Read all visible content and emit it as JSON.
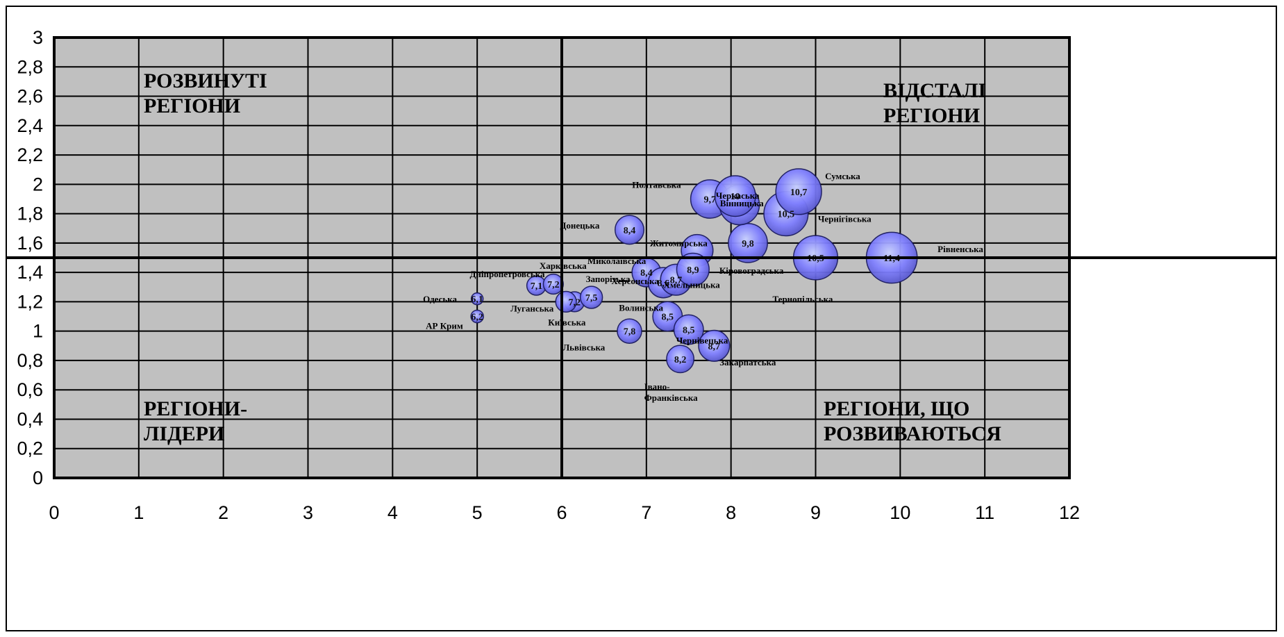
{
  "chart_data": {
    "type": "bubble",
    "title": "",
    "xlabel": "",
    "ylabel": "",
    "xlim": [
      0,
      12
    ],
    "ylim": [
      0,
      3
    ],
    "x_ticks": [
      "0",
      "1",
      "2",
      "3",
      "4",
      "5",
      "6",
      "7",
      "8",
      "9",
      "10",
      "11",
      "12"
    ],
    "y_ticks": [
      "0",
      "0,2",
      "0,4",
      "0,6",
      "0,8",
      "1",
      "1,2",
      "1,4",
      "1,6",
      "1,8",
      "2",
      "2,2",
      "2,4",
      "2,6",
      "2,8",
      "3"
    ],
    "grid": true,
    "divider": {
      "x": 6,
      "y": 1.5
    },
    "quadrants": {
      "top_left": [
        "РОЗВИНУТІ",
        "РЕГІОНИ"
      ],
      "top_right": [
        "ВІДСТАЛІ",
        "РЕГІОНИ"
      ],
      "bottom_left": [
        "РЕГІОНИ-",
        "ЛІДЕРИ"
      ],
      "bottom_right": [
        "РЕГІОНИ, ЩО",
        "РОЗВИВАЮТЬСЯ"
      ]
    },
    "colors": {
      "plot_bg": "#c0c0c0",
      "bubble_fill": "#8080ff",
      "bubble_stroke": "#1a1a60"
    },
    "points": [
      {
        "region": "Одеська",
        "x": 5.0,
        "y": 1.22,
        "value": "6,1",
        "size": 6.1
      },
      {
        "region": "АР Крим",
        "x": 5.0,
        "y": 1.1,
        "value": "6,2",
        "size": 6.2
      },
      {
        "region": "Дніпропетровська",
        "x": 5.7,
        "y": 1.31,
        "value": "7,1",
        "size": 7.1
      },
      {
        "region": "Харківська",
        "x": 5.9,
        "y": 1.32,
        "value": "7,2",
        "size": 7.2
      },
      {
        "region": "Луганська",
        "x": 6.05,
        "y": 1.2,
        "value": "",
        "size": 7.3
      },
      {
        "region": "Київська",
        "x": 6.15,
        "y": 1.2,
        "value": "7,2",
        "size": 7.2
      },
      {
        "region": "Запорізька",
        "x": 6.35,
        "y": 1.23,
        "value": "7,5",
        "size": 7.5
      },
      {
        "region": "Донецька",
        "x": 6.8,
        "y": 1.69,
        "value": "8,4",
        "size": 8.4
      },
      {
        "region": "Львівська",
        "x": 6.8,
        "y": 1.0,
        "value": "7,8",
        "size": 7.8
      },
      {
        "region": "Миколаївська",
        "x": 7.0,
        "y": 1.4,
        "value": "8,4",
        "size": 8.4
      },
      {
        "region": "Херсонська",
        "x": 7.2,
        "y": 1.33,
        "value": "8,6",
        "size": 8.6
      },
      {
        "region": "Волинська",
        "x": 7.25,
        "y": 1.1,
        "value": "8,5",
        "size": 8.5
      },
      {
        "region": "Хмельницька",
        "x": 7.35,
        "y": 1.35,
        "value": "8,7",
        "size": 8.7
      },
      {
        "region": "Кіровоградська",
        "x": 7.55,
        "y": 1.42,
        "value": "8,9",
        "size": 8.9
      },
      {
        "region": "Житомирська",
        "x": 7.6,
        "y": 1.55,
        "value": "",
        "size": 8.8
      },
      {
        "region": "Чернівецька",
        "x": 7.5,
        "y": 1.01,
        "value": "8,5",
        "size": 8.5
      },
      {
        "region": "Закарпатська",
        "x": 7.8,
        "y": 0.9,
        "value": "8,7",
        "size": 8.7
      },
      {
        "region": "Івано-Франківська",
        "x": 7.4,
        "y": 0.81,
        "value": "8,2",
        "size": 8.2
      },
      {
        "region": "Полтавська",
        "x": 7.75,
        "y": 1.9,
        "value": "9,7",
        "size": 9.7
      },
      {
        "region": "Черкаська",
        "x": 8.05,
        "y": 1.92,
        "value": "10",
        "size": 10.0
      },
      {
        "region": "Вінницька",
        "x": 8.1,
        "y": 1.86,
        "value": "",
        "size": 9.9
      },
      {
        "region": "",
        "x": 8.2,
        "y": 1.6,
        "value": "9,8",
        "size": 9.8
      },
      {
        "region": "Сумська",
        "x": 8.8,
        "y": 1.95,
        "value": "10,7",
        "size": 10.7
      },
      {
        "region": "Чернігівська",
        "x": 8.65,
        "y": 1.8,
        "value": "10,5",
        "size": 10.5
      },
      {
        "region": "Тернопільська",
        "x": 9.0,
        "y": 1.5,
        "value": "10,5",
        "size": 10.5
      },
      {
        "region": "Рівненська",
        "x": 9.9,
        "y": 1.5,
        "value": "11,4",
        "size": 11.4
      }
    ]
  }
}
